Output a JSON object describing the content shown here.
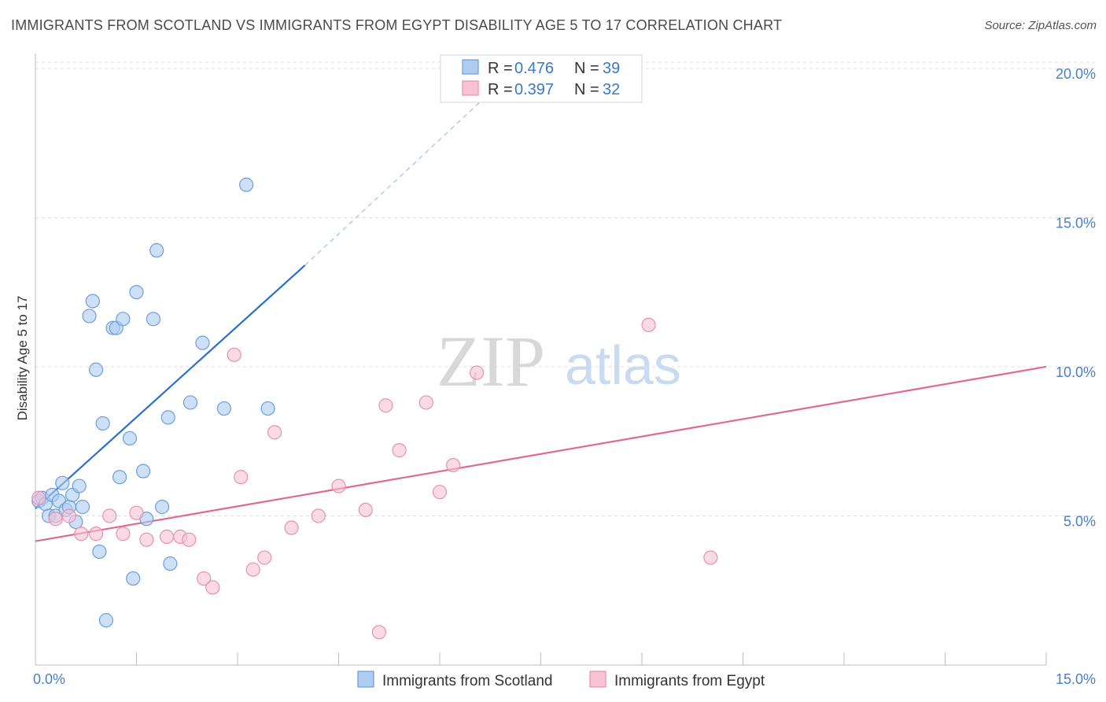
{
  "title": "IMMIGRANTS FROM SCOTLAND VS IMMIGRANTS FROM EGYPT DISABILITY AGE 5 TO 17 CORRELATION CHART",
  "source": "Source: ZipAtlas.com",
  "watermark": {
    "zip": "ZIP",
    "atlas": "atlas"
  },
  "colors": {
    "scotland_fill": "#aecbf0",
    "scotland_stroke": "#6a9fe0",
    "scotland_line": "#2a6fd0",
    "egypt_fill": "#f7c3d3",
    "egypt_stroke": "#e890ae",
    "egypt_line": "#e06892",
    "axis_text": "#4a7fc8"
  },
  "legend": {
    "r_label": "R = ",
    "n_label": "N = ",
    "rows": [
      {
        "r": "0.476",
        "n": "39"
      },
      {
        "r": "0.397",
        "n": "32"
      }
    ]
  },
  "chart_data": {
    "type": "scatter",
    "title": "IMMIGRANTS FROM SCOTLAND VS IMMIGRANTS FROM EGYPT DISABILITY AGE 5 TO 17 CORRELATION CHART",
    "xlabel": "",
    "ylabel": "Disability Age 5 to 17",
    "xlim": [
      0,
      15
    ],
    "ylim": [
      0,
      20.5
    ],
    "x_tick_labels": [
      {
        "value": 0,
        "label": "0.0%"
      },
      {
        "value": 15,
        "label": "15.0%"
      }
    ],
    "x_minor_ticks": [
      1.5,
      3.0,
      4.5,
      6.0,
      7.5,
      9.0,
      10.5,
      12.0,
      13.5,
      15.0
    ],
    "y_ticks": [
      {
        "value": 5,
        "label": "5.0%"
      },
      {
        "value": 10,
        "label": "10.0%"
      },
      {
        "value": 15,
        "label": "15.0%"
      },
      {
        "value": 20,
        "label": "20.0%"
      }
    ],
    "series": [
      {
        "name": "Immigrants from Scotland",
        "points": [
          [
            0.05,
            5.5
          ],
          [
            0.1,
            5.6
          ],
          [
            0.15,
            5.4
          ],
          [
            0.2,
            5.0
          ],
          [
            0.25,
            5.7
          ],
          [
            0.3,
            5.0
          ],
          [
            0.35,
            5.5
          ],
          [
            0.4,
            6.1
          ],
          [
            0.45,
            5.2
          ],
          [
            0.5,
            5.3
          ],
          [
            0.55,
            5.7
          ],
          [
            0.6,
            4.8
          ],
          [
            0.65,
            6.0
          ],
          [
            0.7,
            5.3
          ],
          [
            0.8,
            11.7
          ],
          [
            0.85,
            12.2
          ],
          [
            0.9,
            9.9
          ],
          [
            0.95,
            3.8
          ],
          [
            1.0,
            8.1
          ],
          [
            1.05,
            1.5
          ],
          [
            1.15,
            11.3
          ],
          [
            1.2,
            11.3
          ],
          [
            1.25,
            6.3
          ],
          [
            1.3,
            11.6
          ],
          [
            1.4,
            7.6
          ],
          [
            1.45,
            2.9
          ],
          [
            1.5,
            12.5
          ],
          [
            1.6,
            6.5
          ],
          [
            1.65,
            4.9
          ],
          [
            1.75,
            11.6
          ],
          [
            1.8,
            13.9
          ],
          [
            1.88,
            5.3
          ],
          [
            1.97,
            8.3
          ],
          [
            2.0,
            3.4
          ],
          [
            2.3,
            8.8
          ],
          [
            2.48,
            10.8
          ],
          [
            2.8,
            8.6
          ],
          [
            3.13,
            16.1
          ],
          [
            3.45,
            8.6
          ]
        ],
        "trend": {
          "x0": 0.0,
          "y0": 5.25,
          "x1": 4.0,
          "y1": 13.4,
          "dash_to_x": 6.8,
          "dash_to_y": 19.3
        }
      },
      {
        "name": "Immigrants from Egypt",
        "points": [
          [
            0.05,
            5.6
          ],
          [
            0.3,
            4.9
          ],
          [
            0.5,
            5.0
          ],
          [
            0.68,
            4.4
          ],
          [
            0.9,
            4.4
          ],
          [
            1.1,
            5.0
          ],
          [
            1.3,
            4.4
          ],
          [
            1.5,
            5.1
          ],
          [
            1.65,
            4.2
          ],
          [
            1.95,
            4.3
          ],
          [
            2.15,
            4.3
          ],
          [
            2.28,
            4.2
          ],
          [
            2.5,
            2.9
          ],
          [
            2.63,
            2.6
          ],
          [
            2.95,
            10.4
          ],
          [
            3.05,
            6.3
          ],
          [
            3.23,
            3.2
          ],
          [
            3.4,
            3.6
          ],
          [
            3.55,
            7.8
          ],
          [
            3.8,
            4.6
          ],
          [
            4.2,
            5.0
          ],
          [
            4.5,
            6.0
          ],
          [
            4.9,
            5.2
          ],
          [
            5.1,
            1.1
          ],
          [
            5.2,
            8.7
          ],
          [
            5.4,
            7.2
          ],
          [
            5.8,
            8.8
          ],
          [
            6.0,
            5.8
          ],
          [
            6.2,
            6.7
          ],
          [
            6.55,
            9.8
          ],
          [
            9.1,
            11.4
          ],
          [
            10.02,
            3.6
          ]
        ],
        "trend": {
          "x0": 0.0,
          "y0": 4.15,
          "x1": 15.0,
          "y1": 10.0
        }
      }
    ]
  }
}
